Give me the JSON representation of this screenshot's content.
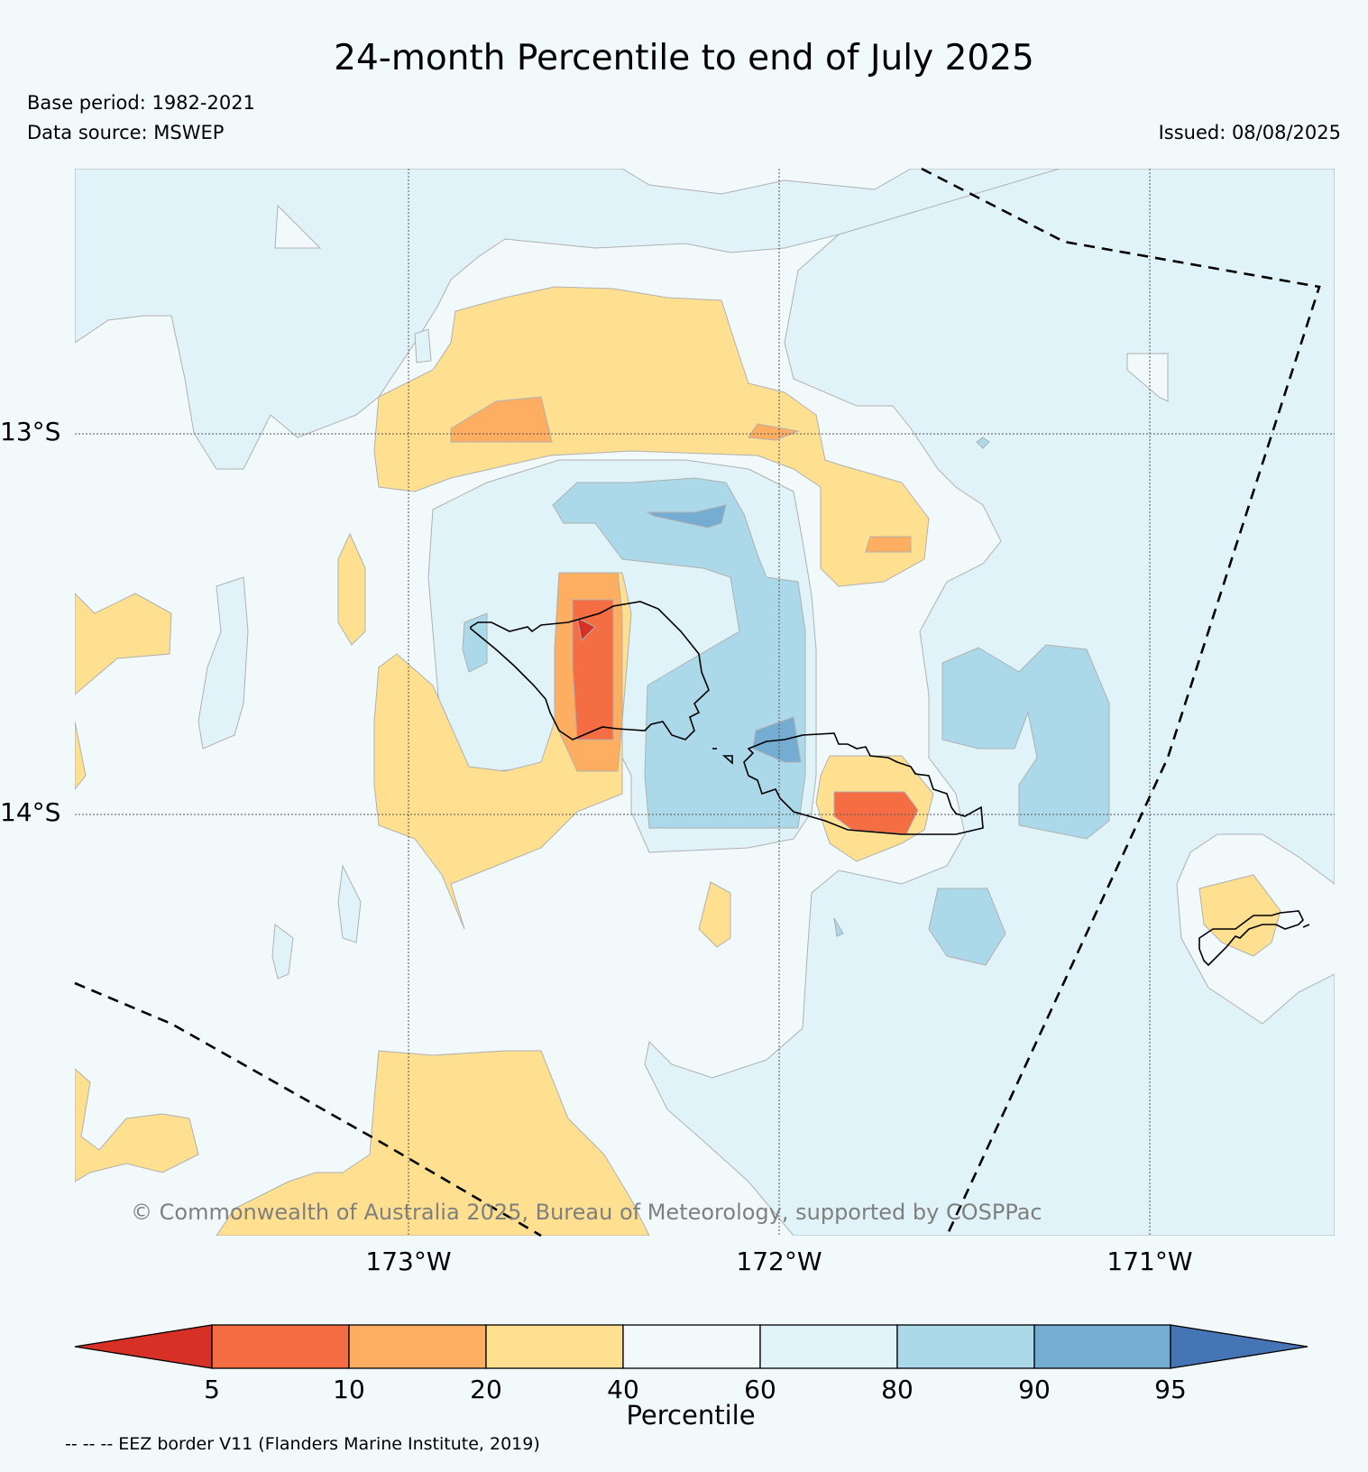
{
  "header": {
    "title": "24-month Percentile to end of July 2025",
    "base_period": "Base period: 1982-2021",
    "data_source": "Data source: MSWEP",
    "issued": "Issued: 08/08/2025"
  },
  "map": {
    "longitude_labels": [
      "173°W",
      "172°W",
      "171°W"
    ],
    "latitude_labels": [
      "13°S",
      "14°S"
    ],
    "copyright": "© Commonwealth of Australia 2025, Bureau of Meteorology, supported by COSPPac"
  },
  "colorbar": {
    "title": "Percentile",
    "ticks": [
      "5",
      "10",
      "20",
      "40",
      "60",
      "80",
      "90",
      "95"
    ],
    "colors": {
      "below_5": "#d73027",
      "5_10": "#f46d43",
      "10_20": "#fdae61",
      "20_40": "#fee090",
      "40_60": "#f2f9fb",
      "60_80": "#e0f3f8",
      "80_90": "#abd9e9",
      "90_95": "#74add1",
      "above_95": "#4575b4"
    }
  },
  "footer": {
    "eez_note": "-- -- -- EEZ border V11 (Flanders Marine Institute, 2019)"
  }
}
